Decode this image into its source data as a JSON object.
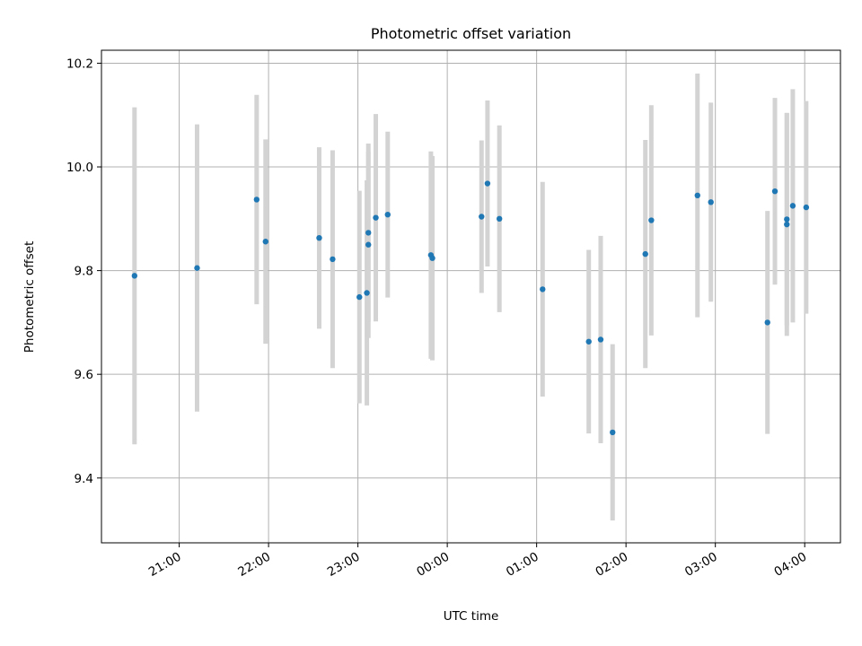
{
  "chart_data": {
    "type": "scatter",
    "title": "Photometric offset variation",
    "xlabel": "UTC time",
    "ylabel": "Photometric offset",
    "x_ticks": [
      "21:00",
      "22:00",
      "23:00",
      "00:00",
      "01:00",
      "02:00",
      "03:00",
      "04:00"
    ],
    "x_tick_values_hours": [
      21,
      22,
      23,
      24,
      25,
      26,
      27,
      28
    ],
    "x_range_hours": [
      20.13,
      28.4
    ],
    "y_ticks": [
      "9.4",
      "9.6",
      "9.8",
      "10.0",
      "10.2"
    ],
    "ylim": [
      9.275,
      10.225
    ],
    "grid": true,
    "colors": {
      "point": "#1f77b4",
      "errorbar": "#d3d3d3",
      "grid": "#b0b0b0",
      "axes": "#000000"
    },
    "series": [
      {
        "points": [
          {
            "time": "20:30",
            "y": 9.79,
            "err": 0.325
          },
          {
            "time": "21:12",
            "y": 9.805,
            "err": 0.277
          },
          {
            "time": "21:52",
            "y": 9.937,
            "err": 0.202
          },
          {
            "time": "21:58",
            "y": 9.856,
            "err": 0.197
          },
          {
            "time": "22:34",
            "y": 9.863,
            "err": 0.175
          },
          {
            "time": "22:43",
            "y": 9.822,
            "err": 0.21
          },
          {
            "time": "23:01",
            "y": 9.749,
            "err": 0.205
          },
          {
            "time": "23:06",
            "y": 9.757,
            "err": 0.217
          },
          {
            "time": "23:07",
            "y": 9.873,
            "err": 0.172
          },
          {
            "time": "23:07",
            "y": 9.85,
            "err": 0.18
          },
          {
            "time": "23:12",
            "y": 9.902,
            "err": 0.2
          },
          {
            "time": "23:20",
            "y": 9.908,
            "err": 0.16
          },
          {
            "time": "23:49",
            "y": 9.83,
            "err": 0.2
          },
          {
            "time": "23:50",
            "y": 9.824,
            "err": 0.197
          },
          {
            "time": "00:23",
            "y": 9.904,
            "err": 0.147
          },
          {
            "time": "00:27",
            "y": 9.968,
            "err": 0.16
          },
          {
            "time": "00:35",
            "y": 9.9,
            "err": 0.18
          },
          {
            "time": "01:04",
            "y": 9.764,
            "err": 0.207
          },
          {
            "time": "01:35",
            "y": 9.663,
            "err": 0.177
          },
          {
            "time": "01:43",
            "y": 9.667,
            "err": 0.2
          },
          {
            "time": "01:51",
            "y": 9.488,
            "err": 0.17
          },
          {
            "time": "02:13",
            "y": 9.832,
            "err": 0.22
          },
          {
            "time": "02:17",
            "y": 9.897,
            "err": 0.222
          },
          {
            "time": "02:48",
            "y": 9.945,
            "err": 0.235
          },
          {
            "time": "02:57",
            "y": 9.932,
            "err": 0.192
          },
          {
            "time": "03:35",
            "y": 9.7,
            "err": 0.215
          },
          {
            "time": "03:40",
            "y": 9.953,
            "err": 0.18
          },
          {
            "time": "03:48",
            "y": 9.899,
            "err": 0.205
          },
          {
            "time": "03:48",
            "y": 9.889,
            "err": 0.215
          },
          {
            "time": "03:52",
            "y": 9.925,
            "err": 0.225
          },
          {
            "time": "04:01",
            "y": 9.922,
            "err": 0.205
          }
        ]
      }
    ]
  }
}
